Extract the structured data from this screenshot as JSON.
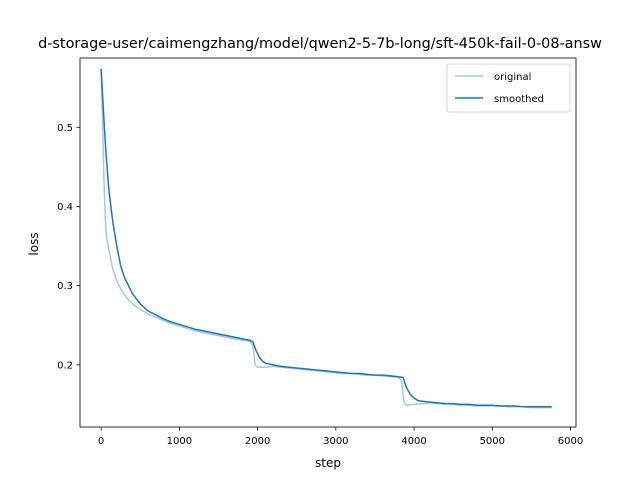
{
  "chart_data": {
    "type": "line",
    "title": "d-storage-user/caimengzhang/model/qwen2-5-7b-long/sft-450k-fail-0-08-answ",
    "xlabel": "step",
    "ylabel": "loss",
    "xlim": [
      -270,
      6070
    ],
    "ylim": [
      0.1215,
      0.5875
    ],
    "x_ticks": [
      0,
      1000,
      2000,
      3000,
      4000,
      5000,
      6000
    ],
    "y_ticks": [
      0.2,
      0.3,
      0.4,
      0.5
    ],
    "x_tick_labels": [
      "0",
      "1000",
      "2000",
      "3000",
      "4000",
      "5000",
      "6000"
    ],
    "y_tick_labels": [
      "0.2",
      "0.3",
      "0.4",
      "0.5"
    ],
    "legend": {
      "position": "top-right"
    },
    "grid": false,
    "series": [
      {
        "name": "original",
        "color": "#a6c8e1",
        "points": [
          [
            0,
            0.574
          ],
          [
            20,
            0.5
          ],
          [
            40,
            0.42
          ],
          [
            60,
            0.37
          ],
          [
            80,
            0.355
          ],
          [
            100,
            0.345
          ],
          [
            120,
            0.335
          ],
          [
            140,
            0.325
          ],
          [
            160,
            0.318
          ],
          [
            180,
            0.312
          ],
          [
            200,
            0.306
          ],
          [
            250,
            0.296
          ],
          [
            300,
            0.288
          ],
          [
            350,
            0.282
          ],
          [
            400,
            0.277
          ],
          [
            500,
            0.27
          ],
          [
            600,
            0.264
          ],
          [
            700,
            0.26
          ],
          [
            800,
            0.256
          ],
          [
            900,
            0.252
          ],
          [
            1000,
            0.249
          ],
          [
            1100,
            0.246
          ],
          [
            1200,
            0.243
          ],
          [
            1300,
            0.241
          ],
          [
            1400,
            0.239
          ],
          [
            1500,
            0.237
          ],
          [
            1600,
            0.235
          ],
          [
            1700,
            0.233
          ],
          [
            1800,
            0.231
          ],
          [
            1900,
            0.23
          ],
          [
            1940,
            0.224
          ],
          [
            1970,
            0.2
          ],
          [
            2000,
            0.197
          ],
          [
            2100,
            0.197
          ],
          [
            2200,
            0.198
          ],
          [
            2300,
            0.197
          ],
          [
            2400,
            0.196
          ],
          [
            2500,
            0.195
          ],
          [
            2600,
            0.194
          ],
          [
            2700,
            0.193
          ],
          [
            2800,
            0.192
          ],
          [
            2900,
            0.191
          ],
          [
            3000,
            0.19
          ],
          [
            3100,
            0.189
          ],
          [
            3200,
            0.189
          ],
          [
            3300,
            0.188
          ],
          [
            3400,
            0.187
          ],
          [
            3500,
            0.187
          ],
          [
            3600,
            0.186
          ],
          [
            3700,
            0.185
          ],
          [
            3800,
            0.184
          ],
          [
            3840,
            0.18
          ],
          [
            3870,
            0.153
          ],
          [
            3900,
            0.149
          ],
          [
            4000,
            0.15
          ],
          [
            4100,
            0.151
          ],
          [
            4200,
            0.152
          ],
          [
            4300,
            0.151
          ],
          [
            4400,
            0.15
          ],
          [
            4500,
            0.15
          ],
          [
            4600,
            0.149
          ],
          [
            4700,
            0.149
          ],
          [
            4800,
            0.148
          ],
          [
            4900,
            0.148
          ],
          [
            5000,
            0.148
          ],
          [
            5100,
            0.148
          ],
          [
            5200,
            0.147
          ],
          [
            5300,
            0.147
          ],
          [
            5400,
            0.147
          ],
          [
            5500,
            0.146
          ],
          [
            5600,
            0.146
          ],
          [
            5700,
            0.146
          ],
          [
            5760,
            0.146
          ]
        ]
      },
      {
        "name": "smoothed",
        "color": "#1f77b4",
        "points": [
          [
            0,
            0.574
          ],
          [
            30,
            0.52
          ],
          [
            60,
            0.47
          ],
          [
            100,
            0.42
          ],
          [
            150,
            0.38
          ],
          [
            200,
            0.35
          ],
          [
            250,
            0.325
          ],
          [
            300,
            0.31
          ],
          [
            400,
            0.29
          ],
          [
            500,
            0.277
          ],
          [
            600,
            0.268
          ],
          [
            700,
            0.263
          ],
          [
            800,
            0.258
          ],
          [
            900,
            0.254
          ],
          [
            1000,
            0.251
          ],
          [
            1100,
            0.248
          ],
          [
            1200,
            0.245
          ],
          [
            1300,
            0.243
          ],
          [
            1400,
            0.241
          ],
          [
            1500,
            0.239
          ],
          [
            1600,
            0.237
          ],
          [
            1700,
            0.235
          ],
          [
            1800,
            0.233
          ],
          [
            1900,
            0.231
          ],
          [
            1940,
            0.229
          ],
          [
            1980,
            0.218
          ],
          [
            2020,
            0.21
          ],
          [
            2060,
            0.205
          ],
          [
            2100,
            0.202
          ],
          [
            2200,
            0.2
          ],
          [
            2300,
            0.198
          ],
          [
            2400,
            0.197
          ],
          [
            2500,
            0.196
          ],
          [
            2600,
            0.195
          ],
          [
            2700,
            0.194
          ],
          [
            2800,
            0.193
          ],
          [
            2900,
            0.192
          ],
          [
            3000,
            0.191
          ],
          [
            3100,
            0.19
          ],
          [
            3200,
            0.189
          ],
          [
            3300,
            0.189
          ],
          [
            3400,
            0.188
          ],
          [
            3500,
            0.187
          ],
          [
            3600,
            0.187
          ],
          [
            3700,
            0.186
          ],
          [
            3800,
            0.185
          ],
          [
            3860,
            0.184
          ],
          [
            3900,
            0.172
          ],
          [
            3950,
            0.163
          ],
          [
            4000,
            0.158
          ],
          [
            4050,
            0.155
          ],
          [
            4100,
            0.154
          ],
          [
            4200,
            0.153
          ],
          [
            4300,
            0.152
          ],
          [
            4400,
            0.151
          ],
          [
            4500,
            0.151
          ],
          [
            4600,
            0.15
          ],
          [
            4700,
            0.15
          ],
          [
            4800,
            0.149
          ],
          [
            4900,
            0.149
          ],
          [
            5000,
            0.149
          ],
          [
            5100,
            0.148
          ],
          [
            5200,
            0.148
          ],
          [
            5300,
            0.148
          ],
          [
            5400,
            0.147
          ],
          [
            5500,
            0.147
          ],
          [
            5600,
            0.147
          ],
          [
            5700,
            0.147
          ],
          [
            5760,
            0.147
          ]
        ]
      }
    ]
  }
}
